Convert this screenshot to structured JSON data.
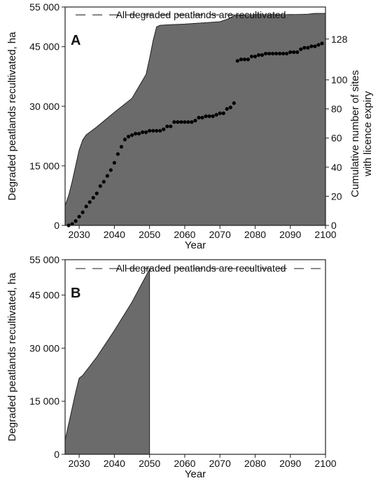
{
  "chart_data": [
    {
      "type": "area",
      "panel_label": "A",
      "xlabel": "Year",
      "ylabel": "Degraded peatlands recultivated, ha",
      "y2label_lines": [
        "Cumulative number of sites",
        "with licence expiry"
      ],
      "xlim": [
        2026,
        2100
      ],
      "ylim": [
        0,
        55000
      ],
      "y2lim": [
        0,
        150
      ],
      "x_ticks": [
        2030,
        2040,
        2050,
        2060,
        2070,
        2080,
        2090,
        2100
      ],
      "x_tick_labels": [
        "2030",
        "2040",
        "2050",
        "2060",
        "2070",
        "2080",
        "2090",
        "2100"
      ],
      "y_ticks": [
        0,
        15000,
        30000,
        45000,
        55000
      ],
      "y_tick_labels": [
        "0",
        "15 000",
        "30 000",
        "45 000",
        "55 000"
      ],
      "y2_ticks": [
        0,
        20,
        40,
        60,
        80,
        100,
        128
      ],
      "y2_tick_labels": [
        "0",
        "20",
        "40",
        "60",
        "80",
        "100",
        "128"
      ],
      "reference_line": {
        "y": 53000,
        "label": "All degraded peatlands are recultivated"
      },
      "colors": {
        "area": "#6b6b6b",
        "points": "#000000",
        "reference_line": "#666666"
      },
      "series": [
        {
          "kind": "area",
          "axis": "left",
          "x": [
            2026,
            2027,
            2028,
            2029,
            2030,
            2031,
            2032,
            2035,
            2040,
            2045,
            2049,
            2050,
            2051,
            2052,
            2053,
            2055,
            2060,
            2065,
            2070,
            2072,
            2073,
            2074,
            2075,
            2080,
            2085,
            2090,
            2095,
            2097,
            2100
          ],
          "y": [
            5000,
            7500,
            11000,
            15000,
            19000,
            21500,
            22800,
            24800,
            28500,
            32000,
            38000,
            42000,
            46500,
            50000,
            50400,
            50500,
            50700,
            51000,
            51300,
            51900,
            52300,
            52800,
            53000,
            53100,
            53100,
            53100,
            53200,
            53400,
            53400
          ]
        },
        {
          "kind": "scatter",
          "axis": "right",
          "x": [
            2027,
            2028,
            2029,
            2030,
            2031,
            2032,
            2033,
            2034,
            2035,
            2036,
            2037,
            2038,
            2039,
            2040,
            2041,
            2042,
            2043,
            2044,
            2045,
            2046,
            2047,
            2048,
            2049,
            2050,
            2051,
            2052,
            2053,
            2054,
            2055,
            2056,
            2057,
            2058,
            2059,
            2060,
            2061,
            2062,
            2063,
            2064,
            2065,
            2066,
            2067,
            2068,
            2069,
            2070,
            2071,
            2072,
            2073,
            2074,
            2075,
            2076,
            2077,
            2078,
            2079,
            2080,
            2081,
            2082,
            2083,
            2084,
            2085,
            2086,
            2087,
            2088,
            2089,
            2090,
            2091,
            2092,
            2093,
            2094,
            2095,
            2096,
            2097,
            2098,
            2099
          ],
          "y": [
            0,
            1,
            3,
            6,
            9,
            13,
            16,
            19,
            22,
            27,
            30,
            34,
            38,
            43,
            49,
            54,
            59,
            61,
            62,
            63,
            63,
            64,
            64,
            65,
            65,
            65,
            65,
            66,
            68,
            68,
            71,
            71,
            71,
            71,
            71,
            71,
            72,
            74,
            74,
            75,
            75,
            75,
            76,
            77,
            77,
            80,
            81,
            84,
            113,
            114,
            114,
            114,
            116,
            116,
            117,
            117,
            118,
            118,
            118,
            118,
            118,
            118,
            118,
            119,
            119,
            119,
            121,
            122,
            122,
            123,
            123,
            124,
            125
          ]
        }
      ]
    },
    {
      "type": "area",
      "panel_label": "B",
      "xlabel": "Year",
      "ylabel": "Degraded peatlands recultivated, ha",
      "xlim": [
        2026,
        2100
      ],
      "ylim": [
        0,
        55000
      ],
      "x_ticks": [
        2030,
        2040,
        2050,
        2060,
        2070,
        2080,
        2090,
        2100
      ],
      "x_tick_labels": [
        "2030",
        "2040",
        "2050",
        "2060",
        "2070",
        "2080",
        "2090",
        "2100"
      ],
      "y_ticks": [
        0,
        15000,
        30000,
        45000,
        55000
      ],
      "y_tick_labels": [
        "0",
        "15 000",
        "30 000",
        "45 000",
        "55 000"
      ],
      "reference_line": {
        "y": 52500,
        "label": "All degraded peatlands are recultivated"
      },
      "colors": {
        "area": "#6b6b6b",
        "reference_line": "#666666"
      },
      "series": [
        {
          "kind": "area",
          "axis": "left",
          "x": [
            2026,
            2027,
            2028,
            2029,
            2030,
            2031,
            2035,
            2040,
            2045,
            2050,
            2050
          ],
          "y": [
            4000,
            8500,
            13000,
            17500,
            21500,
            22300,
            27500,
            35000,
            43000,
            52300,
            0
          ]
        }
      ]
    }
  ]
}
